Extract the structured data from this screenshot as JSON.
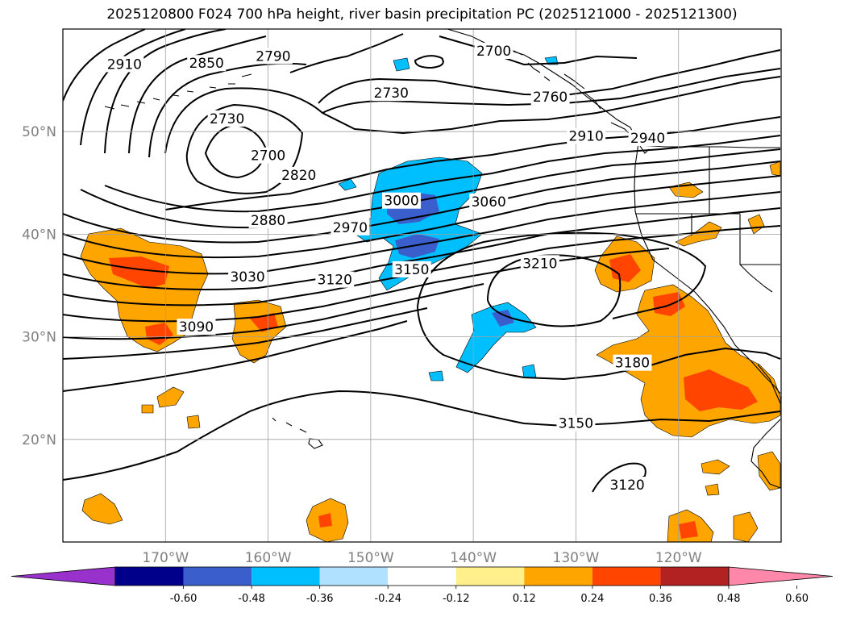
{
  "title": "2025120800 F024 700 hPa height, river basin precipitation PC (2025121000 - 2025121300)",
  "axes": {
    "lon_ticks": [
      {
        "lon": -170,
        "label": "170°W"
      },
      {
        "lon": -160,
        "label": "160°W"
      },
      {
        "lon": -150,
        "label": "150°W"
      },
      {
        "lon": -140,
        "label": "140°W"
      },
      {
        "lon": -130,
        "label": "130°W"
      },
      {
        "lon": -120,
        "label": "120°W"
      }
    ],
    "lat_ticks": [
      {
        "lat": 50,
        "label": "50°N"
      },
      {
        "lat": 40,
        "label": "40°N"
      },
      {
        "lat": 30,
        "label": "30°N"
      },
      {
        "lat": 20,
        "label": "20°N"
      }
    ],
    "lon_range": [
      -180,
      -110
    ],
    "lat_range": [
      10,
      60
    ],
    "grid": true
  },
  "contour_labels": [
    {
      "text": "2910",
      "lon": -174,
      "lat": 56.5
    },
    {
      "text": "2850",
      "lon": -166,
      "lat": 56.6
    },
    {
      "text": "2790",
      "lon": -159.5,
      "lat": 57.3
    },
    {
      "text": "2700",
      "lon": -138,
      "lat": 57.8
    },
    {
      "text": "2730",
      "lon": -148,
      "lat": 53.7
    },
    {
      "text": "2760",
      "lon": -132.5,
      "lat": 53.3
    },
    {
      "text": "2730",
      "lon": -164,
      "lat": 51.2
    },
    {
      "text": "2700",
      "lon": -160,
      "lat": 47.6
    },
    {
      "text": "2910",
      "lon": -129,
      "lat": 49.5
    },
    {
      "text": "2940",
      "lon": -123,
      "lat": 49.3
    },
    {
      "text": "2820",
      "lon": -157,
      "lat": 45.7
    },
    {
      "text": "2880",
      "lon": -160,
      "lat": 41.3
    },
    {
      "text": "2970",
      "lon": -152,
      "lat": 40.6
    },
    {
      "text": "3000",
      "lon": -147,
      "lat": 43.2
    },
    {
      "text": "3060",
      "lon": -138.5,
      "lat": 43.1
    },
    {
      "text": "3030",
      "lon": -162,
      "lat": 35.8
    },
    {
      "text": "3120",
      "lon": -153.5,
      "lat": 35.5
    },
    {
      "text": "3150",
      "lon": -146,
      "lat": 36.5
    },
    {
      "text": "3210",
      "lon": -133.5,
      "lat": 37.1
    },
    {
      "text": "3090",
      "lon": -167,
      "lat": 30.9
    },
    {
      "text": "3180",
      "lon": -124.5,
      "lat": 27.4
    },
    {
      "text": "3150",
      "lon": -130,
      "lat": 21.5
    },
    {
      "text": "3120",
      "lon": -125,
      "lat": 15.5
    }
  ],
  "colorbar": {
    "ticks": [
      "-0.60",
      "-0.48",
      "-0.36",
      "-0.24",
      "-0.12",
      "0.12",
      "0.24",
      "0.36",
      "0.48",
      "0.60"
    ],
    "colors": [
      "#9932cc",
      "#00008b",
      "#3a5fcd",
      "#00bfff",
      "#b0e2ff",
      "#ffffff",
      "#fff08c",
      "#ffa500",
      "#ff4500",
      "#b22222",
      "#ff88aa"
    ]
  },
  "fill_colors": {
    "light_orange": "#ffa500",
    "red_orange": "#ff4500",
    "sky_blue": "#00bfff",
    "royal_blue": "#3a5fcd"
  }
}
